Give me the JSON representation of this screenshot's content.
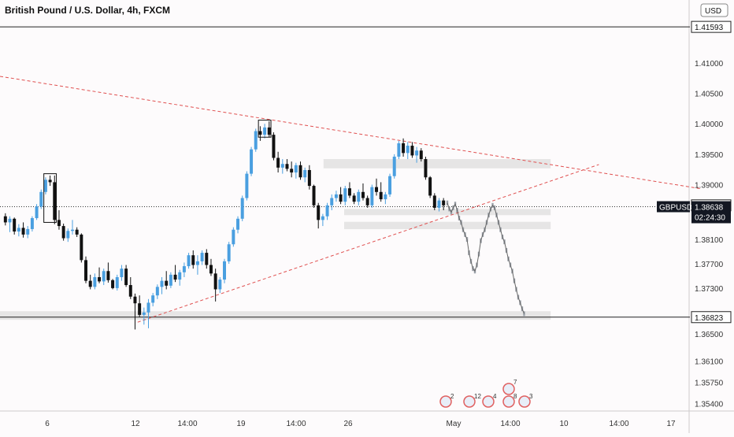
{
  "chart_data": {
    "type": "candlestick",
    "title": "British Pound / U.S. Dollar, 4h, FXCM",
    "symbol": "GBPUSD",
    "currency_button": "USD",
    "x_tick_labels": [
      "6",
      "12",
      "14:00",
      "19",
      "14:00",
      "26",
      "May",
      "14:00",
      "10",
      "14:00",
      "17"
    ],
    "y_tick_labels": [
      1.41,
      1.405,
      1.4,
      1.395,
      1.39,
      1.381,
      1.377,
      1.373,
      1.3655,
      1.361,
      1.3575,
      1.354
    ],
    "ylim": [
      1.3528,
      1.4175
    ],
    "price_badges": [
      {
        "value": "1.41593",
        "style": "white"
      },
      {
        "value": "1.38660",
        "style": "white"
      },
      {
        "value": "1.36823",
        "style": "white"
      }
    ],
    "current_price": {
      "symbol": "GBPUSD",
      "value": "1.38638",
      "countdown": "02:24:30"
    },
    "candles": [
      [
        1.3848,
        1.3853,
        1.3833,
        1.3838
      ],
      [
        1.3838,
        1.3848,
        1.3822,
        1.3844
      ],
      [
        1.3844,
        1.3846,
        1.3818,
        1.3823
      ],
      [
        1.3823,
        1.3835,
        1.3815,
        1.3829
      ],
      [
        1.3829,
        1.3838,
        1.3813,
        1.3818
      ],
      [
        1.3818,
        1.3832,
        1.3812,
        1.3827
      ],
      [
        1.3827,
        1.3848,
        1.3823,
        1.3845
      ],
      [
        1.3845,
        1.3868,
        1.3842,
        1.3864
      ],
      [
        1.3864,
        1.3892,
        1.386,
        1.3888
      ],
      [
        1.3888,
        1.3912,
        1.3884,
        1.3908
      ],
      [
        1.3908,
        1.3915,
        1.3898,
        1.3904
      ],
      [
        1.3904,
        1.3915,
        1.3835,
        1.3842
      ],
      [
        1.3842,
        1.3858,
        1.3826,
        1.3832
      ],
      [
        1.3832,
        1.3836,
        1.3808,
        1.3812
      ],
      [
        1.3812,
        1.3828,
        1.3806,
        1.3824
      ],
      [
        1.3824,
        1.3842,
        1.3818,
        1.3826
      ],
      [
        1.3826,
        1.383,
        1.3814,
        1.3818
      ],
      [
        1.3818,
        1.382,
        1.3772,
        1.3776
      ],
      [
        1.3776,
        1.3782,
        1.3738,
        1.3742
      ],
      [
        1.3742,
        1.3752,
        1.3728,
        1.3732
      ],
      [
        1.3732,
        1.3754,
        1.3728,
        1.3748
      ],
      [
        1.3748,
        1.3764,
        1.3738,
        1.3741
      ],
      [
        1.3741,
        1.3762,
        1.3735,
        1.3758
      ],
      [
        1.3758,
        1.3772,
        1.3739,
        1.3743
      ],
      [
        1.3743,
        1.3745,
        1.3728,
        1.373
      ],
      [
        1.373,
        1.3752,
        1.3726,
        1.3748
      ],
      [
        1.3748,
        1.3768,
        1.3742,
        1.3762
      ],
      [
        1.3762,
        1.3768,
        1.3732,
        1.3735
      ],
      [
        1.3735,
        1.3748,
        1.3712,
        1.3716
      ],
      [
        1.3716,
        1.3721,
        1.3662,
        1.3705
      ],
      [
        1.3705,
        1.3718,
        1.3682,
        1.3686
      ],
      [
        1.3686,
        1.3698,
        1.367,
        1.369
      ],
      [
        1.369,
        1.3712,
        1.3664,
        1.3706
      ],
      [
        1.3706,
        1.3722,
        1.37,
        1.3718
      ],
      [
        1.3718,
        1.3736,
        1.3712,
        1.3732
      ],
      [
        1.3732,
        1.3748,
        1.372,
        1.3742
      ],
      [
        1.3742,
        1.3758,
        1.3728,
        1.3734
      ],
      [
        1.3734,
        1.3756,
        1.373,
        1.3752
      ],
      [
        1.3752,
        1.3768,
        1.374,
        1.3744
      ],
      [
        1.3744,
        1.376,
        1.3734,
        1.3756
      ],
      [
        1.3756,
        1.3772,
        1.3748,
        1.3766
      ],
      [
        1.3766,
        1.3788,
        1.3762,
        1.3784
      ],
      [
        1.3784,
        1.3792,
        1.3762,
        1.3768
      ],
      [
        1.3768,
        1.3784,
        1.3752,
        1.3774
      ],
      [
        1.3774,
        1.3792,
        1.3768,
        1.3788
      ],
      [
        1.3788,
        1.3794,
        1.3762,
        1.3768
      ],
      [
        1.3768,
        1.3778,
        1.375,
        1.3754
      ],
      [
        1.3754,
        1.3762,
        1.3708,
        1.3728
      ],
      [
        1.3728,
        1.3748,
        1.3722,
        1.3744
      ],
      [
        1.3744,
        1.3778,
        1.3738,
        1.3774
      ],
      [
        1.3774,
        1.3806,
        1.377,
        1.3802
      ],
      [
        1.3802,
        1.383,
        1.3798,
        1.3826
      ],
      [
        1.3826,
        1.3848,
        1.382,
        1.3844
      ],
      [
        1.3844,
        1.3882,
        1.384,
        1.3878
      ],
      [
        1.3878,
        1.3922,
        1.3874,
        1.3918
      ],
      [
        1.3918,
        1.3962,
        1.3914,
        1.3958
      ],
      [
        1.3958,
        1.3992,
        1.3954,
        1.3988
      ],
      [
        1.3988,
        1.3996,
        1.3972,
        1.3982
      ],
      [
        1.3982,
        1.4,
        1.3976,
        1.3994
      ],
      [
        1.3994,
        1.4004,
        1.3978,
        1.3982
      ],
      [
        1.3982,
        1.3986,
        1.394,
        1.3944
      ],
      [
        1.3944,
        1.3954,
        1.392,
        1.3928
      ],
      [
        1.3928,
        1.3942,
        1.3918,
        1.3934
      ],
      [
        1.3934,
        1.3942,
        1.3922,
        1.3926
      ],
      [
        1.3926,
        1.3938,
        1.3912,
        1.392
      ],
      [
        1.392,
        1.3936,
        1.391,
        1.3932
      ],
      [
        1.3932,
        1.3938,
        1.3908,
        1.3912
      ],
      [
        1.3912,
        1.3928,
        1.3904,
        1.3924
      ],
      [
        1.3924,
        1.3932,
        1.3892,
        1.3898
      ],
      [
        1.3898,
        1.39,
        1.3862,
        1.3866
      ],
      [
        1.3866,
        1.387,
        1.3828,
        1.3842
      ],
      [
        1.3842,
        1.3852,
        1.3832,
        1.3848
      ],
      [
        1.3848,
        1.387,
        1.3842,
        1.3866
      ],
      [
        1.3866,
        1.3884,
        1.3858,
        1.3878
      ],
      [
        1.3878,
        1.389,
        1.3872,
        1.3884
      ],
      [
        1.3884,
        1.3896,
        1.3868,
        1.3872
      ],
      [
        1.3872,
        1.3898,
        1.3866,
        1.3894
      ],
      [
        1.3894,
        1.3904,
        1.3878,
        1.3882
      ],
      [
        1.3882,
        1.3886,
        1.3868,
        1.3872
      ],
      [
        1.3872,
        1.3892,
        1.3866,
        1.3888
      ],
      [
        1.3888,
        1.3902,
        1.3874,
        1.3878
      ],
      [
        1.3878,
        1.3882,
        1.3862,
        1.3866
      ],
      [
        1.3866,
        1.39,
        1.3862,
        1.3896
      ],
      [
        1.3896,
        1.391,
        1.3882,
        1.3888
      ],
      [
        1.3888,
        1.3904,
        1.3872,
        1.3876
      ],
      [
        1.3876,
        1.3888,
        1.3868,
        1.3884
      ],
      [
        1.3884,
        1.3918,
        1.388,
        1.3914
      ],
      [
        1.3914,
        1.395,
        1.391,
        1.3946
      ],
      [
        1.3946,
        1.3972,
        1.3942,
        1.3968
      ],
      [
        1.3968,
        1.3976,
        1.3946,
        1.3952
      ],
      [
        1.3952,
        1.397,
        1.3942,
        1.3964
      ],
      [
        1.3964,
        1.397,
        1.3944,
        1.3948
      ],
      [
        1.3948,
        1.3962,
        1.3936,
        1.3956
      ],
      [
        1.3956,
        1.396,
        1.3938,
        1.3942
      ],
      [
        1.3942,
        1.3946,
        1.3908,
        1.3912
      ],
      [
        1.3912,
        1.3914,
        1.3878,
        1.3882
      ],
      [
        1.3882,
        1.3886,
        1.3858,
        1.3862
      ],
      [
        1.3862,
        1.3878,
        1.3856,
        1.3874
      ],
      [
        1.3874,
        1.3878,
        1.3858,
        1.3866
      ]
    ],
    "ghost_path": [
      [
        1.387,
        1.386,
        1.3855,
        1.3862,
        1.3868
      ],
      [
        1.3858,
        1.3845,
        1.3838,
        1.3826,
        1.3818
      ],
      [
        1.381,
        1.3788,
        1.3774,
        1.3762,
        1.3758
      ],
      [
        1.3768,
        1.3786,
        1.3808,
        1.3818,
        1.3826
      ],
      [
        1.3838,
        1.385,
        1.386,
        1.3866,
        1.3862
      ],
      [
        1.385,
        1.3838,
        1.3826,
        1.3814,
        1.3806
      ],
      [
        1.3792,
        1.3778,
        1.3768,
        1.3758,
        1.3742
      ],
      [
        1.3728,
        1.3715,
        1.3706,
        1.3696,
        1.3688
      ]
    ],
    "trendlines": [
      {
        "x1": 0,
        "y1": 1.4078,
        "x2": 1.02,
        "y2": 1.3893
      },
      {
        "x1": 0.2,
        "y1": 1.3674,
        "x2": 0.87,
        "y2": 1.3933
      }
    ],
    "zones": [
      {
        "from": 0.47,
        "to": 0.8,
        "top": 1.3942,
        "bottom": 1.3932
      },
      {
        "from": 0.5,
        "to": 0.8,
        "top": 1.3839,
        "bottom": 1.3832
      },
      {
        "from": 0.5,
        "to": 0.8,
        "top": 1.386,
        "bottom": 1.3855
      },
      {
        "from": 0.0,
        "to": 0.8,
        "top": 1.3692,
        "bottom": 1.3683
      }
    ],
    "event_icons": [
      {
        "label": "2",
        "top": ""
      },
      {
        "label": "12",
        "top": ""
      },
      {
        "label": "4",
        "top": ""
      },
      {
        "label": "8",
        "top": "7"
      },
      {
        "label": "3",
        "top": ""
      }
    ]
  }
}
